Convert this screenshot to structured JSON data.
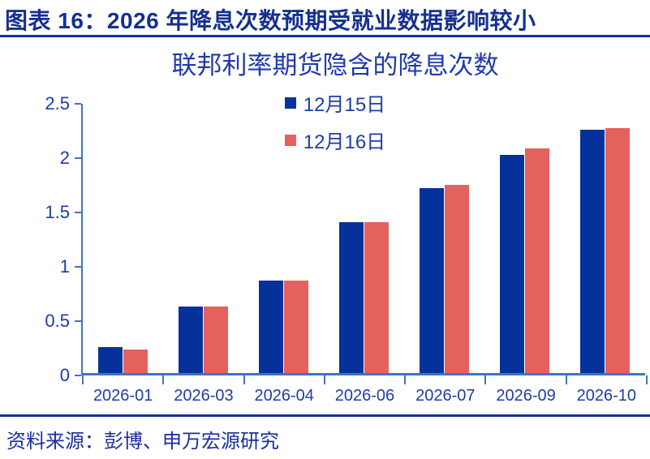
{
  "header": {
    "title": "图表 16：2026 年降息次数预期受就业数据影响较小"
  },
  "chart_data": {
    "type": "bar",
    "title": "联邦利率期货隐含的降息次数",
    "categories": [
      "2026-01",
      "2026-03",
      "2026-04",
      "2026-06",
      "2026-07",
      "2026-09",
      "2026-10"
    ],
    "series": [
      {
        "name": "12月15日",
        "color": "#05329A",
        "values": [
          0.24,
          0.61,
          0.85,
          1.39,
          1.7,
          2.01,
          2.24
        ]
      },
      {
        "name": "12月16日",
        "color": "#E5615E",
        "values": [
          0.22,
          0.61,
          0.85,
          1.39,
          1.73,
          2.07,
          2.25
        ]
      }
    ],
    "xlabel": "",
    "ylabel": "",
    "ylim": [
      0,
      2.5
    ],
    "yticks": [
      0,
      0.5,
      1,
      1.5,
      2,
      2.5
    ],
    "ytick_labels": [
      "0",
      "0.5",
      "1",
      "1.5",
      "2",
      "2.5"
    ],
    "grid": false,
    "legend_position": "top-center"
  },
  "footer": {
    "source": "资料来源：彭博、申万宏源研究"
  },
  "colors": {
    "header_text": "#16308F",
    "title_text": "#1F3AAE",
    "axis_line": "#4472C4",
    "tick_label": "#1E3CA8",
    "rule": "#16309C",
    "bar_blue": "#05329A",
    "bar_red": "#E5615E"
  }
}
